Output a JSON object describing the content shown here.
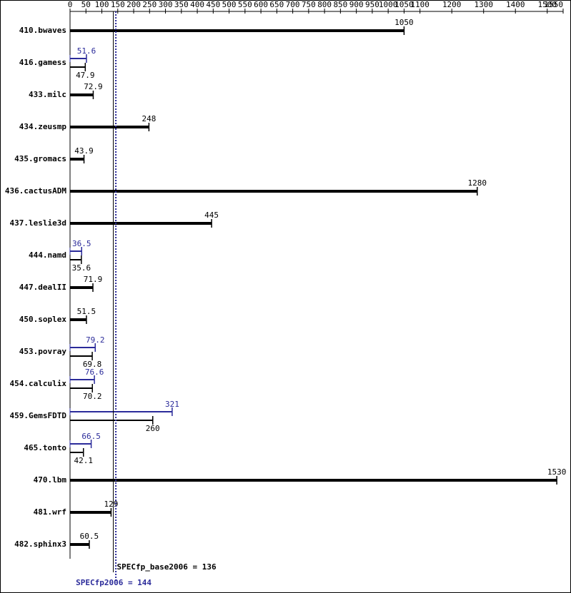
{
  "chart_data": {
    "type": "bar",
    "orientation": "horizontal",
    "categories": [
      "410.bwaves",
      "416.gamess",
      "433.milc",
      "434.zeusmp",
      "435.gromacs",
      "436.cactusADM",
      "437.leslie3d",
      "444.namd",
      "447.dealII",
      "450.soplex",
      "453.povray",
      "454.calculix",
      "459.GemsFDTD",
      "465.tonto",
      "470.lbm",
      "481.wrf",
      "482.sphinx3"
    ],
    "series": [
      {
        "color": "#000000",
        "values": [
          1050,
          47.9,
          72.9,
          248,
          43.9,
          1280,
          445,
          35.6,
          71.9,
          51.5,
          69.8,
          70.2,
          260,
          42.1,
          1530,
          129,
          60.5
        ]
      },
      {
        "color": "#2b2b9a",
        "values": [
          null,
          51.6,
          null,
          null,
          null,
          null,
          null,
          36.5,
          null,
          null,
          79.2,
          76.6,
          321,
          66.5,
          null,
          null,
          null
        ]
      }
    ],
    "xlim": [
      0,
      1550
    ],
    "xticks": [
      0,
      50,
      100,
      150,
      200,
      250,
      300,
      350,
      400,
      450,
      500,
      550,
      600,
      650,
      700,
      750,
      800,
      850,
      900,
      950,
      1000,
      1050,
      1100,
      1200,
      1300,
      1400,
      1500,
      1550
    ],
    "reference_lines": [
      {
        "label": "SPECfp_base2006 = 136",
        "value": 136,
        "color": "#000000"
      },
      {
        "label": "SPECfp2006 = 144",
        "value": 144,
        "color": "#2b2b9a"
      }
    ]
  }
}
